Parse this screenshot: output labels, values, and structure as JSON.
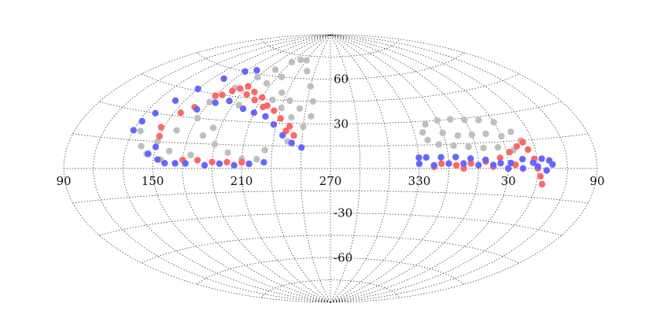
{
  "chart_data": {
    "type": "scatter",
    "projection": "aitoff",
    "title": "",
    "xlabel": "",
    "ylabel": "",
    "xlim": [
      90,
      450
    ],
    "ylim": [
      -90,
      90
    ],
    "grid": true,
    "x_ticks": [
      "90",
      "150",
      "210",
      "270",
      "330",
      "30",
      "90"
    ],
    "x_tick_values": [
      90,
      150,
      210,
      270,
      330,
      390,
      450
    ],
    "y_ticks": [
      "60",
      "30",
      "-30",
      "-60"
    ],
    "y_tick_values": [
      60,
      30,
      -30,
      -60
    ],
    "colors": {
      "gray": "#bfbfbf",
      "red": "#ff6666",
      "blue": "#6666ff"
    },
    "regions": [
      {
        "color": "gray",
        "points": [
          [
            155,
            5
          ],
          [
            160,
            10
          ],
          [
            160,
            22
          ],
          [
            170,
            30
          ],
          [
            180,
            20
          ],
          [
            190,
            15
          ],
          [
            200,
            10
          ],
          [
            210,
            6
          ],
          [
            220,
            6
          ],
          [
            225,
            12
          ],
          [
            240,
            18
          ],
          [
            170,
            40
          ],
          [
            180,
            50
          ],
          [
            190,
            58
          ],
          [
            200,
            64
          ],
          [
            210,
            70
          ],
          [
            220,
            72
          ],
          [
            230,
            72
          ],
          [
            240,
            65
          ],
          [
            250,
            55
          ],
          [
            255,
            45
          ],
          [
            255,
            35
          ],
          [
            250,
            28
          ],
          [
            240,
            34
          ],
          [
            230,
            40
          ],
          [
            220,
            45
          ],
          [
            135,
            20
          ],
          [
            140,
            12
          ],
          [
            145,
            8
          ],
          [
            150,
            15
          ],
          [
            175,
            8
          ],
          [
            185,
            25
          ],
          [
            195,
            40
          ],
          [
            205,
            55
          ],
          [
            215,
            60
          ],
          [
            225,
            50
          ],
          [
            235,
            45
          ],
          [
            245,
            40
          ]
        ]
      },
      {
        "color": "red",
        "points": [
          [
            150,
            18
          ],
          [
            148,
            23
          ],
          [
            155,
            32
          ],
          [
            162,
            36
          ],
          [
            170,
            44
          ],
          [
            180,
            48
          ],
          [
            190,
            52
          ],
          [
            200,
            49
          ],
          [
            210,
            46
          ],
          [
            218,
            41
          ],
          [
            225,
            38
          ],
          [
            232,
            33
          ],
          [
            240,
            28
          ],
          [
            244,
            22
          ],
          [
            175,
            45
          ],
          [
            185,
            50
          ],
          [
            195,
            47
          ],
          [
            205,
            44
          ],
          [
            215,
            40
          ],
          [
            238,
            25
          ],
          [
            170,
            5
          ],
          [
            180,
            5
          ],
          [
            190,
            4
          ],
          [
            200,
            4
          ],
          [
            210,
            4
          ]
        ]
      },
      {
        "color": "blue",
        "points": [
          [
            130,
            20
          ],
          [
            132,
            25
          ],
          [
            137,
            30
          ],
          [
            143,
            38
          ],
          [
            150,
            46
          ],
          [
            160,
            54
          ],
          [
            170,
            60
          ],
          [
            180,
            62
          ],
          [
            165,
            35
          ],
          [
            175,
            40
          ],
          [
            185,
            42
          ],
          [
            200,
            38
          ],
          [
            210,
            36
          ],
          [
            220,
            34
          ],
          [
            228,
            29
          ],
          [
            236,
            22
          ],
          [
            243,
            17
          ],
          [
            250,
            14
          ],
          [
            153,
            5
          ],
          [
            158,
            3
          ],
          [
            165,
            3
          ],
          [
            172,
            3
          ],
          [
            185,
            2
          ],
          [
            195,
            3
          ],
          [
            205,
            2
          ],
          [
            215,
            3
          ],
          [
            225,
            4
          ],
          [
            150,
            12
          ],
          [
            146,
            8
          ]
        ]
      },
      {
        "color": "gray",
        "points": [
          [
            340,
            28
          ],
          [
            350,
            30
          ],
          [
            360,
            30
          ],
          [
            370,
            29
          ],
          [
            380,
            28
          ],
          [
            390,
            26
          ],
          [
            398,
            20
          ],
          [
            402,
            15
          ],
          [
            395,
            10
          ],
          [
            385,
            12
          ],
          [
            375,
            12
          ],
          [
            365,
            13
          ],
          [
            355,
            14
          ],
          [
            345,
            15
          ],
          [
            338,
            18
          ],
          [
            336,
            23
          ],
          [
            350,
            22
          ],
          [
            360,
            20
          ],
          [
            370,
            20
          ],
          [
            380,
            20
          ],
          [
            390,
            18
          ]
        ]
      },
      {
        "color": "red",
        "points": [
          [
            345,
            3
          ],
          [
            355,
            2
          ],
          [
            365,
            3
          ],
          [
            375,
            4
          ],
          [
            385,
            6
          ],
          [
            392,
            9
          ],
          [
            398,
            12
          ],
          [
            403,
            14
          ],
          [
            405,
            10
          ],
          [
            408,
            5
          ],
          [
            410,
            0
          ],
          [
            412,
            -4
          ],
          [
            414,
            -8
          ],
          [
            340,
            1
          ],
          [
            360,
            0
          ],
          [
            380,
            1
          ],
          [
            395,
            2
          ]
        ]
      },
      {
        "color": "blue",
        "points": [
          [
            330,
            7
          ],
          [
            335,
            7
          ],
          [
            345,
            7
          ],
          [
            355,
            7
          ],
          [
            365,
            6
          ],
          [
            375,
            5
          ],
          [
            385,
            3
          ],
          [
            392,
            3
          ],
          [
            400,
            5
          ],
          [
            407,
            3
          ],
          [
            413,
            5
          ],
          [
            418,
            4
          ],
          [
            420,
            2
          ],
          [
            416,
            -1
          ],
          [
            330,
            3
          ],
          [
            340,
            2
          ],
          [
            350,
            3
          ],
          [
            360,
            3
          ],
          [
            370,
            2
          ],
          [
            380,
            2
          ],
          [
            390,
            0
          ],
          [
            400,
            0
          ],
          [
            410,
            1
          ]
        ]
      }
    ]
  }
}
